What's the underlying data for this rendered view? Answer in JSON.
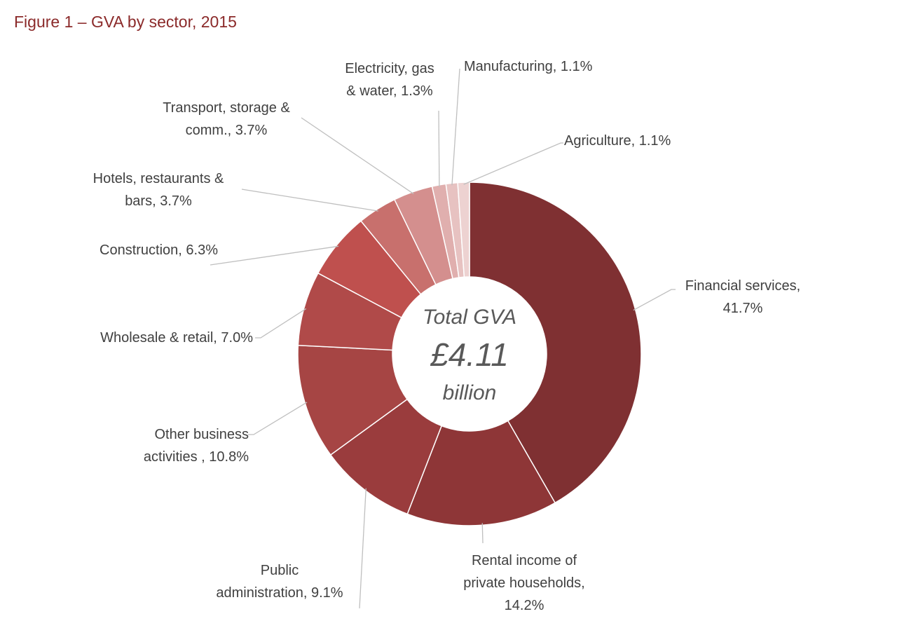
{
  "title": "Figure 1 – GVA by sector, 2015",
  "chart_data": {
    "type": "pie",
    "variant": "donut",
    "categories": [
      "Financial services",
      "Rental income of private households",
      "Public administration",
      "Other business activities",
      "Wholesale & retail",
      "Construction",
      "Hotels, restaurants & bars",
      "Transport, storage & comm.",
      "Electricity, gas & water",
      "Manufacturing",
      "Agriculture"
    ],
    "values": [
      41.7,
      14.2,
      9.1,
      10.8,
      7.0,
      6.3,
      3.7,
      3.7,
      1.3,
      1.1,
      1.1
    ],
    "unit": "%",
    "colors": [
      "#7F3032",
      "#8E3637",
      "#9A3C3D",
      "#A64544",
      "#B04A49",
      "#BF504E",
      "#C8706D",
      "#D48F8E",
      "#E0AFAE",
      "#E7C2C1",
      "#EDD2D1"
    ],
    "labels": [
      [
        "Financial services,",
        "41.7%"
      ],
      [
        "Rental income of",
        "private households,",
        "14.2%"
      ],
      [
        "Public",
        "administration, 9.1%"
      ],
      [
        "Other business",
        "activities , 10.8%"
      ],
      [
        "Wholesale & retail, 7.0%"
      ],
      [
        "Construction, 6.3%"
      ],
      [
        "Hotels, restaurants &",
        "bars, 3.7%"
      ],
      [
        "Transport, storage &",
        "comm., 3.7%"
      ],
      [
        "Electricity, gas",
        "& water, 1.3%"
      ],
      [
        "Manufacturing, 1.1%"
      ],
      [
        "Agriculture, 1.1%"
      ]
    ],
    "center_text": [
      "Total GVA",
      "£4.11",
      "billion"
    ],
    "legend": "none"
  }
}
